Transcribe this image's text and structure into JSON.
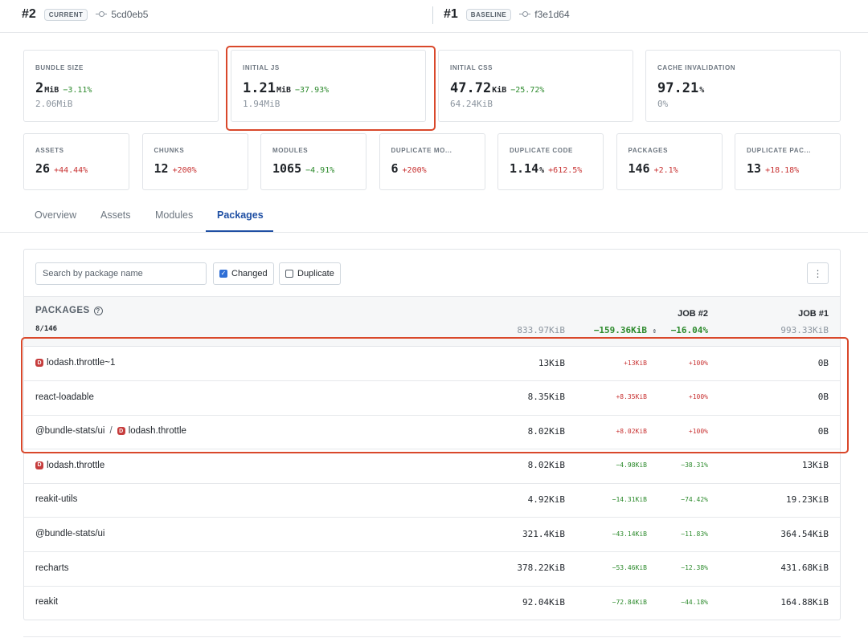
{
  "header": {
    "current": {
      "num": "#2",
      "tag": "CURRENT",
      "commit": "5cd0eb5"
    },
    "baseline": {
      "num": "#1",
      "tag": "BASELINE",
      "commit": "f3e1d64"
    }
  },
  "metrics_top": [
    {
      "label": "BUNDLE SIZE",
      "value": "2",
      "unit": "MiB",
      "delta": "−3.11%",
      "baseline": "2.06MiB"
    },
    {
      "label": "INITIAL JS",
      "value": "1.21",
      "unit": "MiB",
      "delta": "−37.93%",
      "baseline": "1.94MiB"
    },
    {
      "label": "INITIAL CSS",
      "value": "47.72",
      "unit": "KiB",
      "delta": "−25.72%",
      "baseline": "64.24KiB"
    },
    {
      "label": "CACHE INVALIDATION",
      "value": "97.21",
      "unit": "%",
      "delta": "",
      "baseline": "0%"
    }
  ],
  "metrics_bottom": [
    {
      "label": "ASSETS",
      "value": "26",
      "unit": "",
      "delta": "+44.44%"
    },
    {
      "label": "CHUNKS",
      "value": "12",
      "unit": "",
      "delta": "+200%"
    },
    {
      "label": "MODULES",
      "value": "1065",
      "unit": "",
      "delta": "−4.91%"
    },
    {
      "label": "DUPLICATE MO...",
      "value": "6",
      "unit": "",
      "delta": "+200%"
    },
    {
      "label": "DUPLICATE CODE",
      "value": "1.14",
      "unit": "%",
      "delta": "+612.5%"
    },
    {
      "label": "PACKAGES",
      "value": "146",
      "unit": "",
      "delta": "+2.1%"
    },
    {
      "label": "DUPLICATE PAC...",
      "value": "13",
      "unit": "",
      "delta": "+18.18%"
    }
  ],
  "tabs": [
    "Overview",
    "Assets",
    "Modules",
    "Packages"
  ],
  "active_tab": "Packages",
  "toolbar": {
    "search_placeholder": "Search by package name",
    "changed_label": "Changed",
    "duplicate_label": "Duplicate",
    "menu_glyph": "⋮",
    "check_glyph": "✓"
  },
  "table": {
    "title": "PACKAGES",
    "help_glyph": "?",
    "count": "8/146",
    "job2_label": "JOB #2",
    "job1_label": "JOB #1",
    "totals": {
      "current": "833.97KiB",
      "diff": "−159.36KiB",
      "sort_glyph": "⇕",
      "percent": "−16.04%",
      "baseline": "993.33KiB"
    },
    "dup_glyph": "D",
    "rows": [
      {
        "parts": [
          {
            "dup": true,
            "name": "lodash.throttle~1"
          }
        ],
        "current": "13KiB",
        "diff": "+13KiB",
        "percent": "+100%",
        "baseline": "0B"
      },
      {
        "parts": [
          {
            "dup": false,
            "name": "react-loadable"
          }
        ],
        "current": "8.35KiB",
        "diff": "+8.35KiB",
        "percent": "+100%",
        "baseline": "0B"
      },
      {
        "parts": [
          {
            "dup": false,
            "name": "@bundle-stats/ui"
          },
          {
            "dup": true,
            "name": "lodash.throttle"
          }
        ],
        "current": "8.02KiB",
        "diff": "+8.02KiB",
        "percent": "+100%",
        "baseline": "0B"
      },
      {
        "parts": [
          {
            "dup": true,
            "name": "lodash.throttle"
          }
        ],
        "current": "8.02KiB",
        "diff": "−4.98KiB",
        "percent": "−38.31%",
        "baseline": "13KiB"
      },
      {
        "parts": [
          {
            "dup": false,
            "name": "reakit-utils"
          }
        ],
        "current": "4.92KiB",
        "diff": "−14.31KiB",
        "percent": "−74.42%",
        "baseline": "19.23KiB"
      },
      {
        "parts": [
          {
            "dup": false,
            "name": "@bundle-stats/ui"
          }
        ],
        "current": "321.4KiB",
        "diff": "−43.14KiB",
        "percent": "−11.83%",
        "baseline": "364.54KiB"
      },
      {
        "parts": [
          {
            "dup": false,
            "name": "recharts"
          }
        ],
        "current": "378.22KiB",
        "diff": "−53.46KiB",
        "percent": "−12.38%",
        "baseline": "431.68KiB"
      },
      {
        "parts": [
          {
            "dup": false,
            "name": "reakit"
          }
        ],
        "current": "92.04KiB",
        "diff": "−72.84KiB",
        "percent": "−44.18%",
        "baseline": "164.88KiB"
      }
    ]
  },
  "colors": {
    "positive": "#2c8a2c",
    "negative": "#c83232",
    "accent": "#1f4fa3",
    "highlight": "#d9482b",
    "duplicate_badge": "#c63d3d"
  }
}
